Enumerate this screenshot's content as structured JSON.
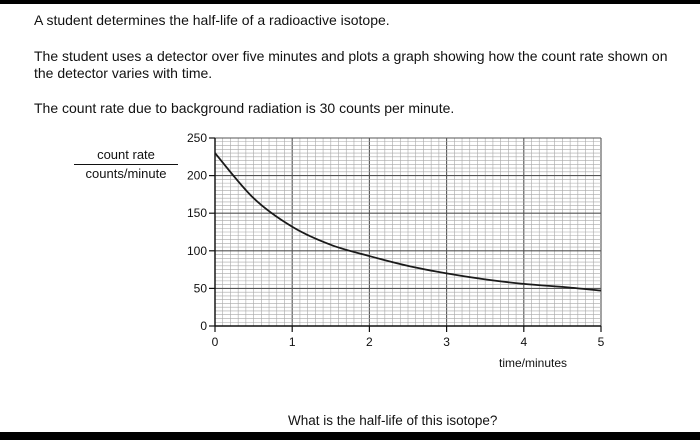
{
  "intro": "A student determines the half-life of a radioactive isotope.",
  "method": "The student uses a detector over five minutes and plots a graph showing how the count rate shown on the detector varies with time.",
  "background": "The count rate due to background radiation is 30 counts per minute.",
  "question": "What is the half-life of this isotope?",
  "chart_data": {
    "type": "line",
    "title": "",
    "ylabel_top": "count rate",
    "ylabel_bottom": "counts/minute",
    "xlabel": "time/minutes",
    "xlim": [
      0,
      5
    ],
    "ylim": [
      0,
      250
    ],
    "x_ticks": [
      "0",
      "1",
      "2",
      "3",
      "4",
      "5"
    ],
    "y_ticks": [
      "0",
      "50",
      "100",
      "150",
      "200",
      "250"
    ],
    "grid": true,
    "minor_divisions": 10,
    "series": [
      {
        "x": [
          0,
          0.5,
          1,
          1.5,
          2,
          2.5,
          3,
          3.5,
          4,
          4.5,
          5
        ],
        "y": [
          230,
          170,
          132,
          108,
          93,
          80,
          70,
          62,
          56,
          52,
          47
        ]
      }
    ]
  }
}
